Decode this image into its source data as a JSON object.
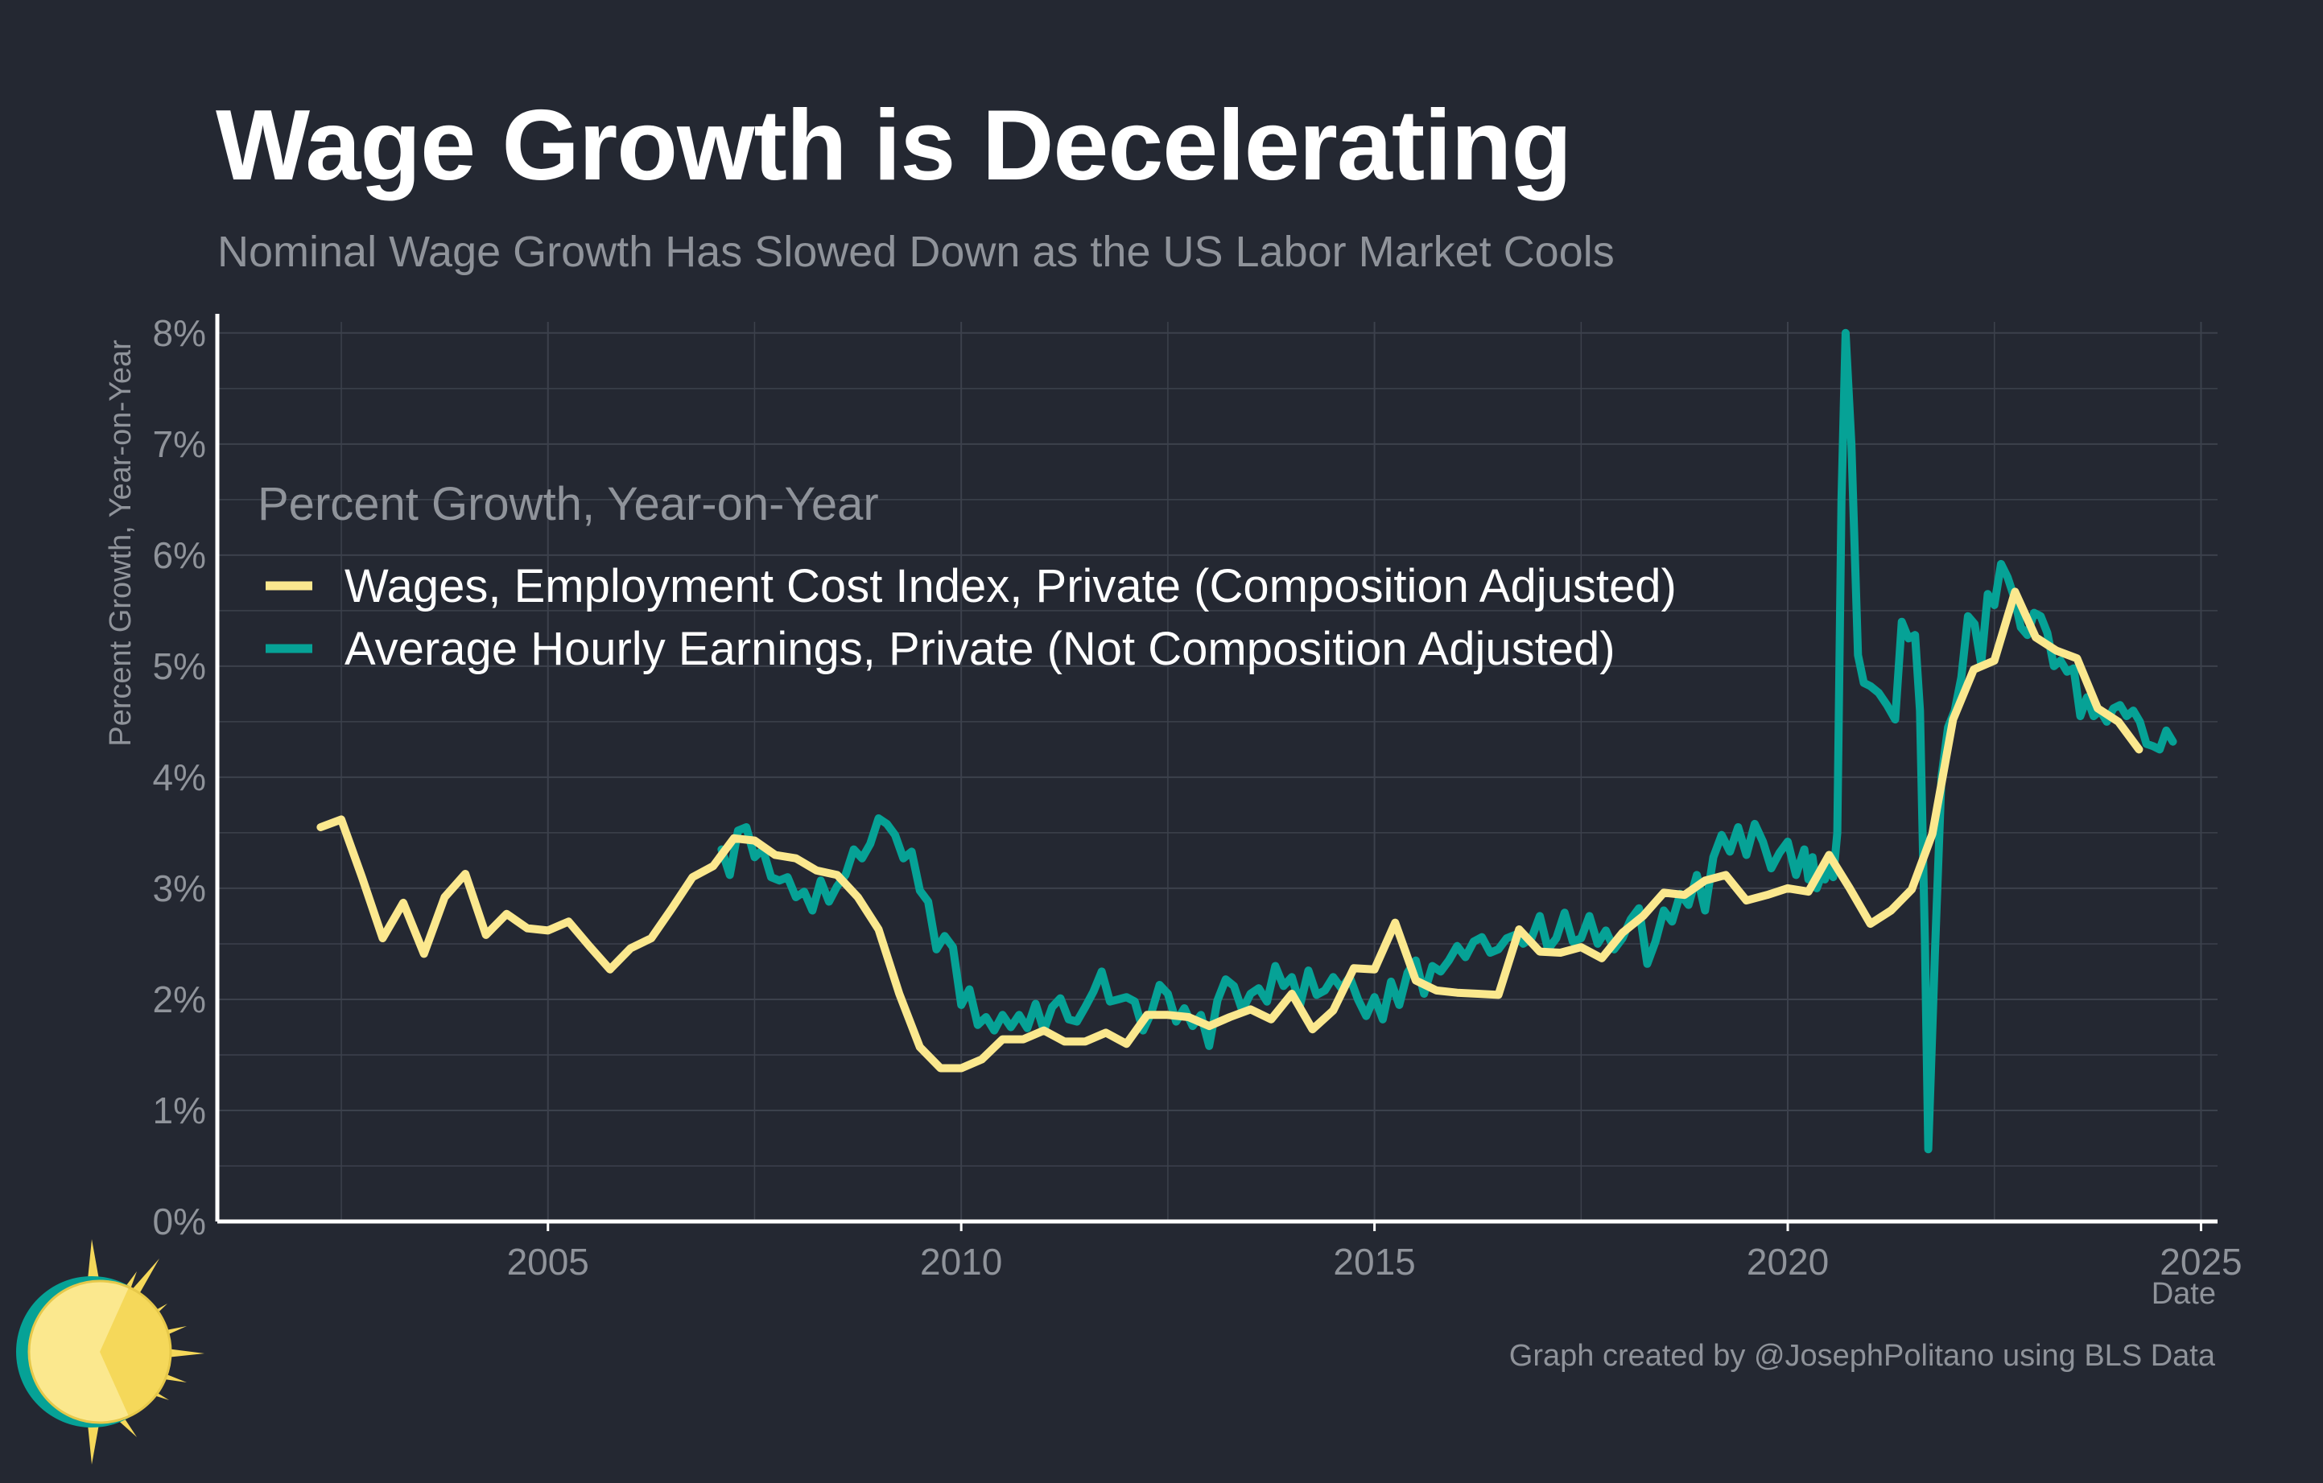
{
  "header": {
    "title": "Wage Growth is Decelerating",
    "subtitle": "Nominal Wage Growth Has Slowed Down as the US Labor Market Cools"
  },
  "footer": {
    "caption": "Graph created by @JosephPolitano using BLS Data"
  },
  "logo": {
    "icon": "sun-logo-icon"
  },
  "colors": {
    "background": "#242832",
    "grid": "#3c414c",
    "axis": "#ffffff",
    "tick_text": "#8f939a",
    "legend_text": "#ffffff",
    "eci": "#fbe88e",
    "ahe": "#06a296"
  },
  "chart_data": {
    "type": "line",
    "xlabel": "Date",
    "ylabel": "Percent Growth, Year-on-Year",
    "legend_title": "Percent Growth, Year-on-Year",
    "legend_position": "upper-left",
    "grid": true,
    "xlim": [
      2001.0,
      2025.2
    ],
    "ylim": [
      0,
      8.1
    ],
    "x_ticks": [
      2005,
      2010,
      2015,
      2020,
      2025
    ],
    "x_tick_labels": [
      "2005",
      "2010",
      "2015",
      "2020",
      "2025"
    ],
    "y_ticks": [
      0,
      1,
      2,
      3,
      4,
      5,
      6,
      7,
      8
    ],
    "y_tick_labels": [
      "0%",
      "1%",
      "2%",
      "3%",
      "4%",
      "5%",
      "6%",
      "7%",
      "8%"
    ],
    "series": [
      {
        "name": "Wages, Employment Cost Index, Private (Composition Adjusted)",
        "color": "#fbe88e",
        "points": [
          [
            2002.25,
            3.55
          ],
          [
            2002.5,
            3.62
          ],
          [
            2002.75,
            3.1
          ],
          [
            2003.0,
            2.55
          ],
          [
            2003.25,
            2.87
          ],
          [
            2003.5,
            2.41
          ],
          [
            2003.75,
            2.92
          ],
          [
            2004.0,
            3.13
          ],
          [
            2004.25,
            2.58
          ],
          [
            2004.5,
            2.77
          ],
          [
            2004.75,
            2.64
          ],
          [
            2005.0,
            2.62
          ],
          [
            2005.25,
            2.7
          ],
          [
            2005.5,
            2.48
          ],
          [
            2005.75,
            2.27
          ],
          [
            2006.0,
            2.46
          ],
          [
            2006.25,
            2.55
          ],
          [
            2006.5,
            2.82
          ],
          [
            2006.75,
            3.1
          ],
          [
            2007.0,
            3.2
          ],
          [
            2007.25,
            3.45
          ],
          [
            2007.5,
            3.43
          ],
          [
            2007.75,
            3.3
          ],
          [
            2008.0,
            3.27
          ],
          [
            2008.25,
            3.16
          ],
          [
            2008.5,
            3.12
          ],
          [
            2008.75,
            2.92
          ],
          [
            2009.0,
            2.63
          ],
          [
            2009.25,
            2.05
          ],
          [
            2009.5,
            1.57
          ],
          [
            2009.75,
            1.38
          ],
          [
            2010.0,
            1.38
          ],
          [
            2010.25,
            1.46
          ],
          [
            2010.5,
            1.64
          ],
          [
            2010.75,
            1.64
          ],
          [
            2011.0,
            1.72
          ],
          [
            2011.25,
            1.62
          ],
          [
            2011.5,
            1.62
          ],
          [
            2011.75,
            1.7
          ],
          [
            2012.0,
            1.6
          ],
          [
            2012.25,
            1.86
          ],
          [
            2012.5,
            1.86
          ],
          [
            2012.75,
            1.84
          ],
          [
            2013.0,
            1.76
          ],
          [
            2013.25,
            1.84
          ],
          [
            2013.5,
            1.91
          ],
          [
            2013.75,
            1.82
          ],
          [
            2014.0,
            2.05
          ],
          [
            2014.25,
            1.73
          ],
          [
            2014.5,
            1.9
          ],
          [
            2014.75,
            2.28
          ],
          [
            2015.0,
            2.27
          ],
          [
            2015.25,
            2.69
          ],
          [
            2015.5,
            2.17
          ],
          [
            2015.75,
            2.08
          ],
          [
            2016.0,
            2.06
          ],
          [
            2016.25,
            2.05
          ],
          [
            2016.5,
            2.04
          ],
          [
            2016.75,
            2.63
          ],
          [
            2017.0,
            2.43
          ],
          [
            2017.25,
            2.42
          ],
          [
            2017.5,
            2.47
          ],
          [
            2017.75,
            2.37
          ],
          [
            2018.0,
            2.6
          ],
          [
            2018.25,
            2.75
          ],
          [
            2018.5,
            2.96
          ],
          [
            2018.75,
            2.94
          ],
          [
            2019.0,
            3.07
          ],
          [
            2019.25,
            3.12
          ],
          [
            2019.5,
            2.89
          ],
          [
            2019.75,
            2.94
          ],
          [
            2020.0,
            3.0
          ],
          [
            2020.25,
            2.97
          ],
          [
            2020.5,
            3.3
          ],
          [
            2020.75,
            3.0
          ],
          [
            2021.0,
            2.68
          ],
          [
            2021.25,
            2.8
          ],
          [
            2021.5,
            2.99
          ],
          [
            2021.75,
            3.49
          ],
          [
            2022.0,
            4.52
          ],
          [
            2022.25,
            4.97
          ],
          [
            2022.5,
            5.05
          ],
          [
            2022.75,
            5.67
          ],
          [
            2023.0,
            5.26
          ],
          [
            2023.25,
            5.14
          ],
          [
            2023.5,
            5.07
          ],
          [
            2023.75,
            4.62
          ],
          [
            2024.0,
            4.5
          ],
          [
            2024.25,
            4.25
          ]
        ]
      },
      {
        "name": "Average Hourly Earnings, Private (Not Composition Adjusted)",
        "color": "#06a296",
        "points": [
          [
            2007.1,
            3.35
          ],
          [
            2007.2,
            3.12
          ],
          [
            2007.3,
            3.52
          ],
          [
            2007.4,
            3.55
          ],
          [
            2007.5,
            3.28
          ],
          [
            2007.6,
            3.35
          ],
          [
            2007.7,
            3.1
          ],
          [
            2007.8,
            3.07
          ],
          [
            2007.9,
            3.1
          ],
          [
            2008.0,
            2.92
          ],
          [
            2008.1,
            2.97
          ],
          [
            2008.2,
            2.8
          ],
          [
            2008.3,
            3.07
          ],
          [
            2008.4,
            2.88
          ],
          [
            2008.5,
            3.02
          ],
          [
            2008.6,
            3.12
          ],
          [
            2008.7,
            3.35
          ],
          [
            2008.8,
            3.27
          ],
          [
            2008.9,
            3.4
          ],
          [
            2009.0,
            3.63
          ],
          [
            2009.1,
            3.58
          ],
          [
            2009.2,
            3.48
          ],
          [
            2009.3,
            3.27
          ],
          [
            2009.4,
            3.33
          ],
          [
            2009.5,
            2.98
          ],
          [
            2009.6,
            2.88
          ],
          [
            2009.7,
            2.45
          ],
          [
            2009.8,
            2.57
          ],
          [
            2009.9,
            2.47
          ],
          [
            2010.0,
            1.95
          ],
          [
            2010.1,
            2.09
          ],
          [
            2010.2,
            1.77
          ],
          [
            2010.3,
            1.84
          ],
          [
            2010.4,
            1.72
          ],
          [
            2010.5,
            1.86
          ],
          [
            2010.6,
            1.75
          ],
          [
            2010.7,
            1.86
          ],
          [
            2010.8,
            1.74
          ],
          [
            2010.9,
            1.96
          ],
          [
            2011.0,
            1.72
          ],
          [
            2011.1,
            1.93
          ],
          [
            2011.2,
            2.01
          ],
          [
            2011.3,
            1.82
          ],
          [
            2011.4,
            1.8
          ],
          [
            2011.5,
            1.93
          ],
          [
            2011.6,
            2.07
          ],
          [
            2011.7,
            2.25
          ],
          [
            2011.8,
            1.98
          ],
          [
            2011.9,
            2.0
          ],
          [
            2012.0,
            2.02
          ],
          [
            2012.1,
            1.98
          ],
          [
            2012.2,
            1.72
          ],
          [
            2012.3,
            1.88
          ],
          [
            2012.4,
            2.13
          ],
          [
            2012.5,
            2.05
          ],
          [
            2012.6,
            1.8
          ],
          [
            2012.7,
            1.92
          ],
          [
            2012.8,
            1.76
          ],
          [
            2012.9,
            1.86
          ],
          [
            2013.0,
            1.58
          ],
          [
            2013.1,
            1.99
          ],
          [
            2013.2,
            2.18
          ],
          [
            2013.3,
            2.12
          ],
          [
            2013.4,
            1.9
          ],
          [
            2013.5,
            2.05
          ],
          [
            2013.6,
            2.1
          ],
          [
            2013.7,
            1.98
          ],
          [
            2013.8,
            2.3
          ],
          [
            2013.9,
            2.12
          ],
          [
            2014.0,
            2.2
          ],
          [
            2014.1,
            1.95
          ],
          [
            2014.2,
            2.26
          ],
          [
            2014.3,
            2.04
          ],
          [
            2014.4,
            2.08
          ],
          [
            2014.5,
            2.2
          ],
          [
            2014.6,
            2.1
          ],
          [
            2014.7,
            2.2
          ],
          [
            2014.8,
            2.0
          ],
          [
            2014.9,
            1.85
          ],
          [
            2015.0,
            2.02
          ],
          [
            2015.1,
            1.82
          ],
          [
            2015.2,
            2.16
          ],
          [
            2015.3,
            1.95
          ],
          [
            2015.4,
            2.24
          ],
          [
            2015.5,
            2.35
          ],
          [
            2015.6,
            2.05
          ],
          [
            2015.7,
            2.3
          ],
          [
            2015.8,
            2.25
          ],
          [
            2015.9,
            2.35
          ],
          [
            2016.0,
            2.48
          ],
          [
            2016.1,
            2.38
          ],
          [
            2016.2,
            2.52
          ],
          [
            2016.3,
            2.56
          ],
          [
            2016.4,
            2.42
          ],
          [
            2016.5,
            2.45
          ],
          [
            2016.6,
            2.55
          ],
          [
            2016.7,
            2.58
          ],
          [
            2016.8,
            2.5
          ],
          [
            2016.9,
            2.55
          ],
          [
            2017.0,
            2.75
          ],
          [
            2017.1,
            2.45
          ],
          [
            2017.2,
            2.55
          ],
          [
            2017.3,
            2.78
          ],
          [
            2017.4,
            2.52
          ],
          [
            2017.5,
            2.55
          ],
          [
            2017.6,
            2.75
          ],
          [
            2017.7,
            2.5
          ],
          [
            2017.8,
            2.62
          ],
          [
            2017.9,
            2.45
          ],
          [
            2018.0,
            2.55
          ],
          [
            2018.1,
            2.72
          ],
          [
            2018.2,
            2.82
          ],
          [
            2018.3,
            2.32
          ],
          [
            2018.4,
            2.52
          ],
          [
            2018.5,
            2.8
          ],
          [
            2018.6,
            2.7
          ],
          [
            2018.7,
            2.95
          ],
          [
            2018.8,
            2.85
          ],
          [
            2018.9,
            3.12
          ],
          [
            2019.0,
            2.8
          ],
          [
            2019.1,
            3.28
          ],
          [
            2019.2,
            3.48
          ],
          [
            2019.3,
            3.33
          ],
          [
            2019.4,
            3.55
          ],
          [
            2019.5,
            3.3
          ],
          [
            2019.6,
            3.58
          ],
          [
            2019.7,
            3.42
          ],
          [
            2019.8,
            3.18
          ],
          [
            2019.9,
            3.32
          ],
          [
            2020.0,
            3.42
          ],
          [
            2020.1,
            3.12
          ],
          [
            2020.2,
            3.35
          ],
          [
            2020.25,
            3.08
          ],
          [
            2020.3,
            3.28
          ],
          [
            2020.35,
            3.0
          ],
          [
            2020.4,
            3.1
          ],
          [
            2020.45,
            3.08
          ],
          [
            2020.5,
            3.2
          ],
          [
            2020.55,
            3.1
          ],
          [
            2020.6,
            3.5
          ],
          [
            2020.65,
            6.5
          ],
          [
            2020.7,
            8.0
          ],
          [
            2020.77,
            7.0
          ],
          [
            2020.85,
            5.1
          ],
          [
            2020.92,
            4.85
          ],
          [
            2021.0,
            4.82
          ],
          [
            2021.1,
            4.76
          ],
          [
            2021.2,
            4.65
          ],
          [
            2021.3,
            4.52
          ],
          [
            2021.38,
            5.4
          ],
          [
            2021.46,
            5.25
          ],
          [
            2021.54,
            5.28
          ],
          [
            2021.6,
            4.6
          ],
          [
            2021.66,
            2.5
          ],
          [
            2021.7,
            0.65
          ],
          [
            2021.78,
            2.4
          ],
          [
            2021.86,
            4.0
          ],
          [
            2021.94,
            4.45
          ],
          [
            2022.02,
            4.6
          ],
          [
            2022.1,
            4.9
          ],
          [
            2022.18,
            5.45
          ],
          [
            2022.26,
            5.38
          ],
          [
            2022.34,
            5.02
          ],
          [
            2022.42,
            5.65
          ],
          [
            2022.5,
            5.55
          ],
          [
            2022.58,
            5.92
          ],
          [
            2022.66,
            5.8
          ],
          [
            2022.74,
            5.62
          ],
          [
            2022.82,
            5.35
          ],
          [
            2022.9,
            5.28
          ],
          [
            2022.98,
            5.48
          ],
          [
            2023.06,
            5.45
          ],
          [
            2023.14,
            5.3
          ],
          [
            2023.22,
            5.0
          ],
          [
            2023.3,
            5.05
          ],
          [
            2023.38,
            4.95
          ],
          [
            2023.46,
            4.98
          ],
          [
            2023.54,
            4.55
          ],
          [
            2023.62,
            4.72
          ],
          [
            2023.7,
            4.55
          ],
          [
            2023.78,
            4.6
          ],
          [
            2023.86,
            4.5
          ],
          [
            2023.94,
            4.62
          ],
          [
            2024.02,
            4.65
          ],
          [
            2024.1,
            4.55
          ],
          [
            2024.18,
            4.6
          ],
          [
            2024.26,
            4.5
          ],
          [
            2024.34,
            4.3
          ],
          [
            2024.42,
            4.28
          ],
          [
            2024.5,
            4.25
          ],
          [
            2024.58,
            4.42
          ],
          [
            2024.66,
            4.32
          ]
        ]
      }
    ]
  }
}
